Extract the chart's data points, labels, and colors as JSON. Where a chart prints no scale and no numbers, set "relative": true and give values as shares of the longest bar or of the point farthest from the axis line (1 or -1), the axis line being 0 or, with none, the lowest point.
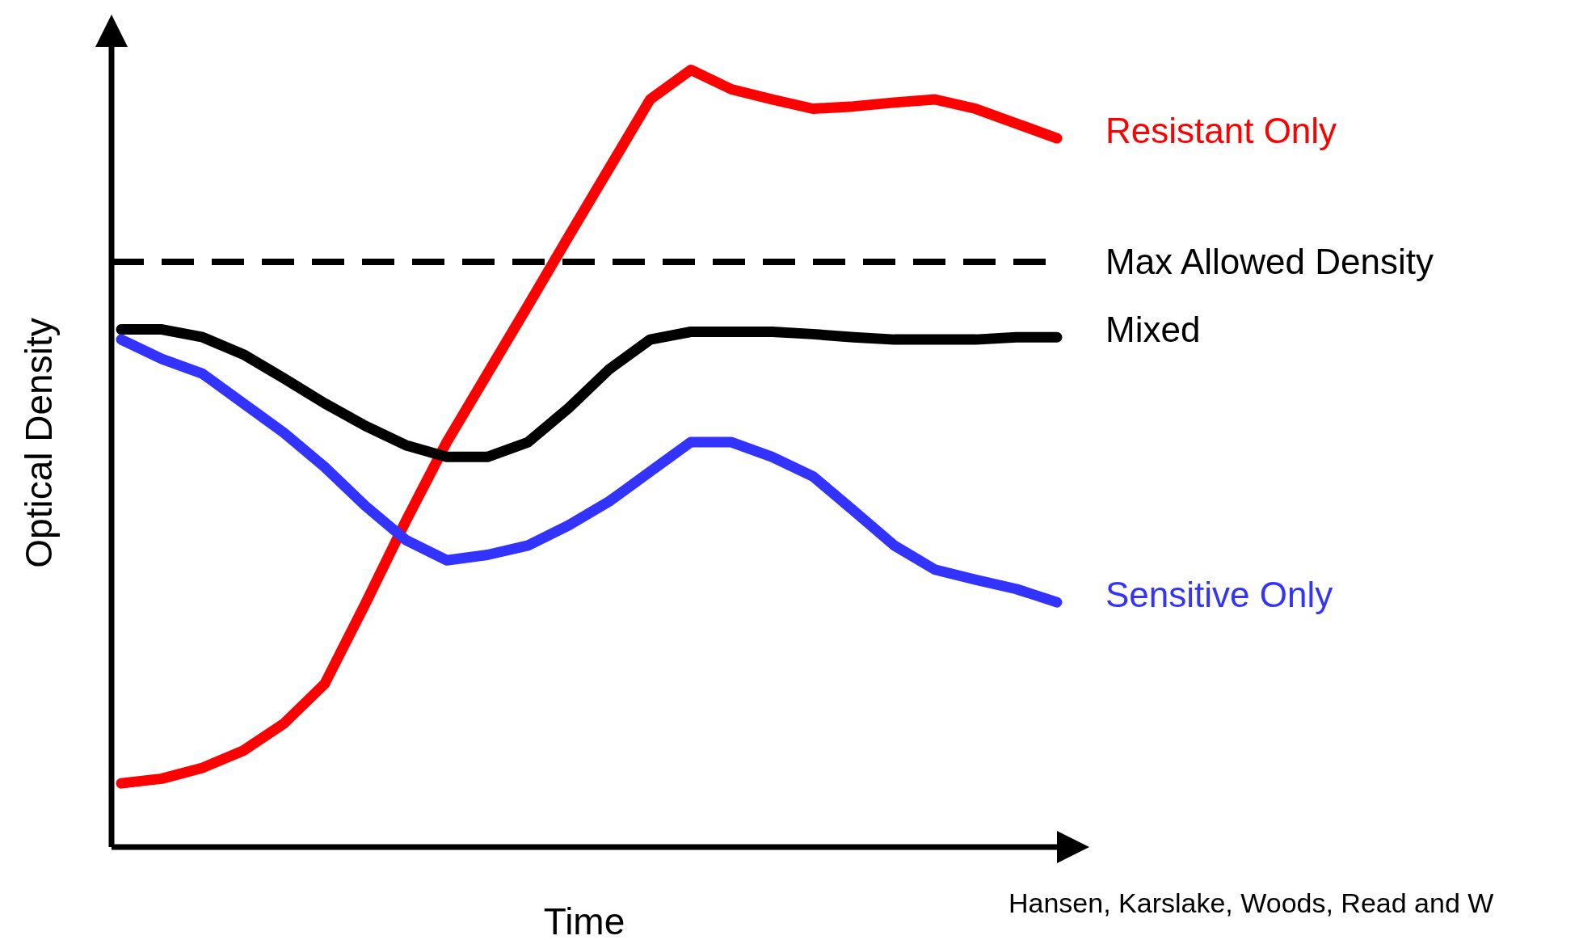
{
  "chart_data": {
    "type": "line",
    "relative": true,
    "xlabel": "Time",
    "ylabel": "Optical Density",
    "grid": false,
    "legend": false,
    "marker": "none",
    "line_style": "solid",
    "categories": [
      null,
      null,
      null,
      null,
      null,
      null,
      null,
      null,
      null,
      null,
      null,
      null,
      null,
      null,
      null,
      null,
      null,
      null,
      null,
      null,
      null,
      null,
      null,
      null
    ],
    "series": [
      {
        "name": "Resistant Only",
        "color": "#ff0000",
        "values": [
          0.082,
          0.088,
          0.102,
          0.124,
          0.159,
          0.21,
          0.313,
          0.42,
          0.521,
          0.609,
          0.697,
          0.786,
          0.874,
          0.962,
          1.0,
          0.975,
          0.962,
          0.95,
          0.953,
          0.958,
          0.962,
          0.95,
          0.931,
          0.912
        ]
      },
      {
        "name": "Mixed",
        "color": "#000000",
        "values": [
          0.666,
          0.666,
          0.656,
          0.634,
          0.603,
          0.571,
          0.542,
          0.517,
          0.502,
          0.502,
          0.521,
          0.565,
          0.615,
          0.653,
          0.663,
          0.663,
          0.663,
          0.66,
          0.656,
          0.653,
          0.653,
          0.653,
          0.656,
          0.656
        ]
      },
      {
        "name": "Sensitive Only",
        "color": "#3333ff",
        "values": [
          0.653,
          0.628,
          0.609,
          0.571,
          0.533,
          0.489,
          0.439,
          0.395,
          0.369,
          0.376,
          0.388,
          0.414,
          0.445,
          0.483,
          0.521,
          0.521,
          0.502,
          0.477,
          0.433,
          0.388,
          0.357,
          0.344,
          0.332,
          0.315
        ]
      }
    ],
    "ref_lines": [
      {
        "axis": "y",
        "value": 0.753,
        "label": "Max Allowed Density",
        "color": "#000000",
        "line_style": "dashed"
      }
    ],
    "annotations": [
      "Hansen, Karslake, Woods, Read and W"
    ]
  }
}
